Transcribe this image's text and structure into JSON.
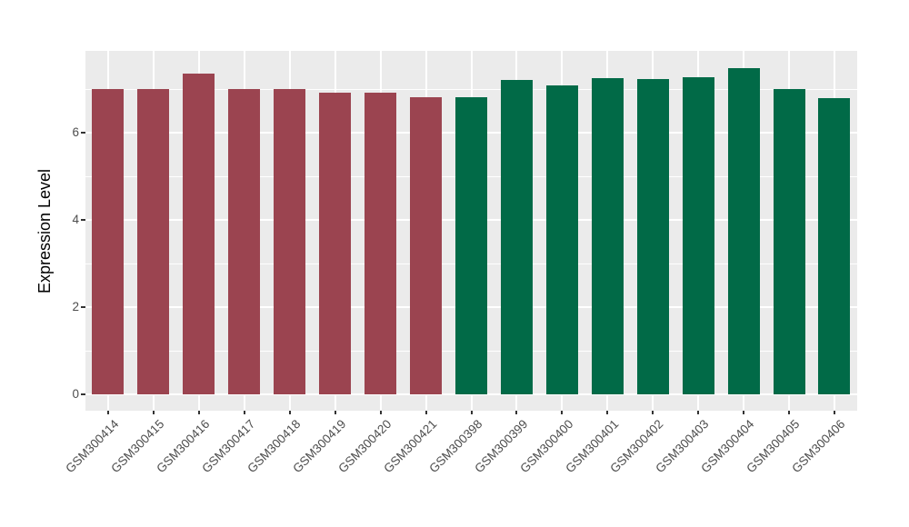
{
  "figure": {
    "background": "#FFFFFF",
    "panel_background": "#EBEBEB",
    "grid_color": "#FFFFFF",
    "tick_mark_color": "#333333",
    "tick_label_color": "#4D4D4D",
    "axis_title_color": "#000000"
  },
  "chart_data": {
    "type": "bar",
    "title": "",
    "xlabel": "",
    "ylabel": "Expression Level",
    "ylim": [
      -0.375,
      7.875
    ],
    "yticks": [
      0,
      2,
      4,
      6
    ],
    "minor_yticks": [
      1,
      3,
      5,
      7
    ],
    "grid": true,
    "legend": false,
    "categories": [
      "GSM300414",
      "GSM300415",
      "GSM300416",
      "GSM300417",
      "GSM300418",
      "GSM300419",
      "GSM300420",
      "GSM300421",
      "GSM300398",
      "GSM300399",
      "GSM300400",
      "GSM300401",
      "GSM300402",
      "GSM300403",
      "GSM300404",
      "GSM300405",
      "GSM300406"
    ],
    "values": [
      7.0,
      7.0,
      7.35,
      7.0,
      7.0,
      6.92,
      6.92,
      6.82,
      6.82,
      7.2,
      7.08,
      7.25,
      7.23,
      7.27,
      7.47,
      7.0,
      6.8
    ],
    "bar_colors": [
      "#9B4450",
      "#9B4450",
      "#9B4450",
      "#9B4450",
      "#9B4450",
      "#9B4450",
      "#9B4450",
      "#9B4450",
      "#016A47",
      "#016A47",
      "#016A47",
      "#016A47",
      "#016A47",
      "#016A47",
      "#016A47",
      "#016A47",
      "#016A47"
    ],
    "group_palette": {
      "left_group_color": "#9B4450",
      "right_group_color": "#016A47"
    }
  }
}
